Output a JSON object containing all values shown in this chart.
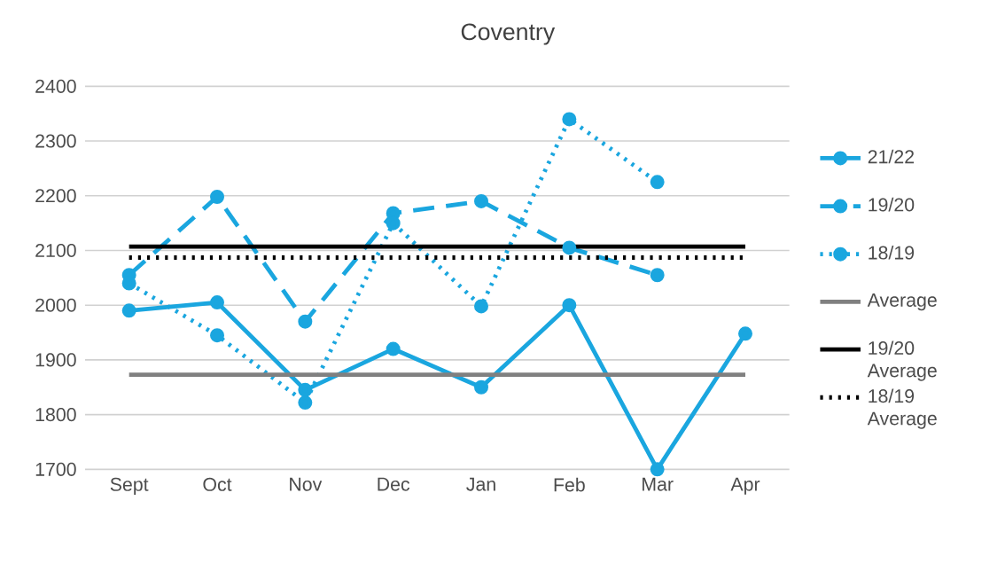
{
  "chart_data": {
    "type": "line",
    "title": "Coventry",
    "categories": [
      "Sept",
      "Oct",
      "Nov",
      "Dec",
      "Jan",
      "Feb",
      "Mar",
      "Apr"
    ],
    "series": [
      {
        "name": "21/22",
        "color": "#1aa6df",
        "line_style": "solid",
        "marker": "circle",
        "values": [
          1990,
          2005,
          1845,
          1920,
          1850,
          2000,
          1700,
          1948
        ]
      },
      {
        "name": "19/20",
        "color": "#1aa6df",
        "line_style": "dashed",
        "marker": "circle",
        "values": [
          2055,
          2198,
          1970,
          2168,
          2190,
          2105,
          2055,
          null
        ]
      },
      {
        "name": "18/19",
        "color": "#1aa6df",
        "line_style": "dotted",
        "marker": "circle",
        "values": [
          2040,
          1945,
          1822,
          2150,
          1998,
          2340,
          2225,
          null
        ]
      },
      {
        "name": "Average",
        "color": "#808080",
        "line_style": "solid",
        "marker": "none",
        "values": [
          1873,
          1873,
          1873,
          1873,
          1873,
          1873,
          1873,
          1873
        ]
      },
      {
        "name": "19/20 Average",
        "color": "#000000",
        "line_style": "solid",
        "marker": "none",
        "values": [
          2107,
          2107,
          2107,
          2107,
          2107,
          2107,
          2107,
          2107
        ]
      },
      {
        "name": "18/19 Average",
        "color": "#000000",
        "line_style": "dotted",
        "marker": "none",
        "values": [
          2087,
          2087,
          2087,
          2087,
          2087,
          2087,
          2087,
          2087
        ]
      }
    ],
    "ylim": [
      1700,
      2400
    ],
    "yticks": [
      1700,
      1800,
      1900,
      2000,
      2100,
      2200,
      2300,
      2400
    ],
    "grid": "y",
    "legend": "right"
  }
}
